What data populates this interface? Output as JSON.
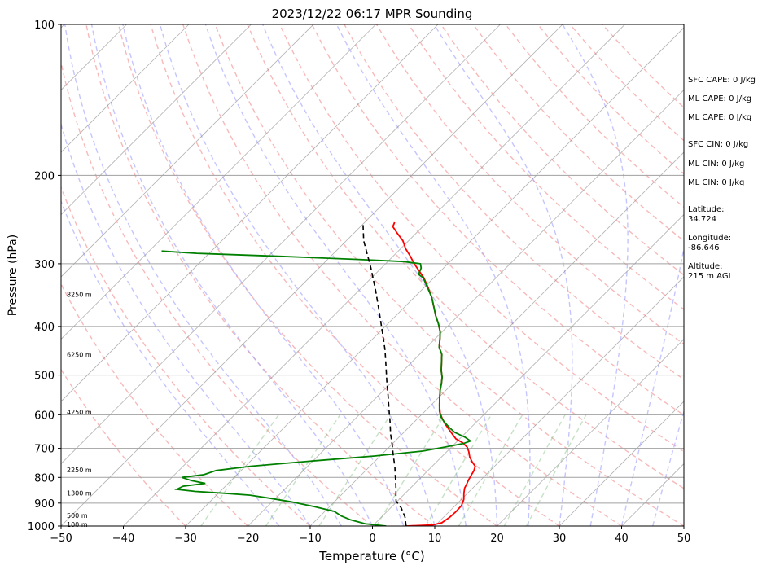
{
  "chart_data": {
    "type": "line",
    "title": "2023/12/22 06:17 MPR Sounding",
    "xlabel": "Temperature (°C)",
    "ylabel": "Pressure (hPa)",
    "xlim": [
      -50,
      50
    ],
    "ylim": [
      1000,
      100
    ],
    "y_scale": "log",
    "skew": "skew-T log-P",
    "x_ticks": [
      "−50",
      "−40",
      "−30",
      "−20",
      "−10",
      "0",
      "10",
      "20",
      "30",
      "40",
      "50"
    ],
    "y_ticks": [
      "100",
      "200",
      "300",
      "400",
      "500",
      "600",
      "700",
      "800",
      "900",
      "1000"
    ],
    "grid": true,
    "height_labels": [
      {
        "text": "8250 m",
        "p": 345
      },
      {
        "text": "6250 m",
        "p": 455
      },
      {
        "text": "4250 m",
        "p": 592
      },
      {
        "text": "2250 m",
        "p": 773
      },
      {
        "text": "1300 m",
        "p": 860
      },
      {
        "text": "500 m",
        "p": 952
      },
      {
        "text": "100 m",
        "p": 993
      }
    ],
    "series": [
      {
        "color": "#ff0000",
        "points": [
          [
            1000,
            5.4
          ],
          [
            995,
            9.4
          ],
          [
            985,
            10.6
          ],
          [
            960,
            11.0
          ],
          [
            935,
            11.1
          ],
          [
            910,
            11.0
          ],
          [
            885,
            10.4
          ],
          [
            860,
            9.4
          ],
          [
            840,
            8.7
          ],
          [
            825,
            8.4
          ],
          [
            808,
            8.0
          ],
          [
            792,
            7.7
          ],
          [
            776,
            7.4
          ],
          [
            760,
            6.9
          ],
          [
            745,
            5.7
          ],
          [
            728,
            4.5
          ],
          [
            712,
            3.6
          ],
          [
            697,
            2.6
          ],
          [
            683,
            1.2
          ],
          [
            670,
            -0.6
          ],
          [
            655,
            -2.0
          ],
          [
            640,
            -3.4
          ],
          [
            625,
            -4.8
          ],
          [
            610,
            -6.1
          ],
          [
            595,
            -7.3
          ],
          [
            575,
            -8.6
          ],
          [
            555,
            -9.8
          ],
          [
            535,
            -11.0
          ],
          [
            520,
            -11.8
          ],
          [
            505,
            -12.7
          ],
          [
            490,
            -13.9
          ],
          [
            470,
            -15.3
          ],
          [
            455,
            -16.4
          ],
          [
            440,
            -18.0
          ],
          [
            425,
            -19.1
          ],
          [
            410,
            -20.3
          ],
          [
            395,
            -21.9
          ],
          [
            380,
            -23.7
          ],
          [
            365,
            -25.4
          ],
          [
            350,
            -27.2
          ],
          [
            335,
            -29.3
          ],
          [
            320,
            -31.6
          ],
          [
            300,
            -35.4
          ],
          [
            290,
            -37.2
          ],
          [
            280,
            -39.2
          ],
          [
            270,
            -40.9
          ],
          [
            260,
            -43.2
          ],
          [
            253,
            -44.8
          ],
          [
            248,
            -45.2
          ]
        ]
      },
      {
        "color": "#008000",
        "points": [
          [
            1000,
            2.2
          ],
          [
            990,
            -1.5
          ],
          [
            972,
            -4.5
          ],
          [
            955,
            -6.6
          ],
          [
            935,
            -8.5
          ],
          [
            915,
            -12.4
          ],
          [
            895,
            -16.9
          ],
          [
            880,
            -21.0
          ],
          [
            868,
            -24.6
          ],
          [
            860,
            -29.2
          ],
          [
            853,
            -34.0
          ],
          [
            845,
            -37.3
          ],
          [
            833,
            -36.8
          ],
          [
            822,
            -33.7
          ],
          [
            812,
            -36.3
          ],
          [
            800,
            -38.4
          ],
          [
            790,
            -35.3
          ],
          [
            775,
            -34.0
          ],
          [
            760,
            -29.2
          ],
          [
            742,
            -20.2
          ],
          [
            725,
            -10.9
          ],
          [
            709,
            -4.0
          ],
          [
            696,
            -1.0
          ],
          [
            685,
            1.3
          ],
          [
            677,
            2.1
          ],
          [
            665,
            0.6
          ],
          [
            650,
            -1.9
          ],
          [
            636,
            -3.5
          ],
          [
            620,
            -5.2
          ],
          [
            605,
            -6.6
          ],
          [
            590,
            -7.7
          ],
          [
            575,
            -8.6
          ],
          [
            555,
            -9.8
          ],
          [
            535,
            -11.0
          ],
          [
            520,
            -11.8
          ],
          [
            505,
            -12.7
          ],
          [
            490,
            -13.9
          ],
          [
            470,
            -15.3
          ],
          [
            455,
            -16.4
          ],
          [
            440,
            -18.0
          ],
          [
            425,
            -19.1
          ],
          [
            410,
            -20.3
          ],
          [
            395,
            -21.9
          ],
          [
            380,
            -23.7
          ],
          [
            365,
            -25.4
          ],
          [
            350,
            -27.2
          ],
          [
            335,
            -29.4
          ],
          [
            320,
            -31.7
          ],
          [
            315,
            -33.0
          ],
          [
            306,
            -33.6
          ],
          [
            300,
            -34.4
          ],
          [
            297,
            -37.5
          ],
          [
            294,
            -45.4
          ],
          [
            290,
            -58.0
          ],
          [
            286,
            -72.0
          ],
          [
            283,
            -78.0
          ]
        ]
      },
      {
        "color": "#000000",
        "style": "dashed",
        "points": [
          [
            1000,
            5.4
          ],
          [
            960,
            3.8
          ],
          [
            920,
            1.7
          ],
          [
            892,
            -0.2
          ],
          [
            870,
            -1.1
          ],
          [
            850,
            -1.9
          ],
          [
            820,
            -3.2
          ],
          [
            790,
            -4.6
          ],
          [
            760,
            -6.0
          ],
          [
            725,
            -7.9
          ],
          [
            690,
            -9.8
          ],
          [
            655,
            -11.9
          ],
          [
            620,
            -13.9
          ],
          [
            585,
            -16.1
          ],
          [
            550,
            -18.4
          ],
          [
            515,
            -20.9
          ],
          [
            480,
            -23.5
          ],
          [
            445,
            -26.3
          ],
          [
            410,
            -29.6
          ],
          [
            375,
            -33.2
          ],
          [
            340,
            -37.2
          ],
          [
            305,
            -41.8
          ],
          [
            270,
            -47.2
          ],
          [
            250,
            -50.0
          ]
        ]
      }
    ],
    "dry_adiabats_theta_c": [
      -30,
      -20,
      -10,
      0,
      10,
      20,
      30,
      40,
      50,
      60,
      70,
      80,
      90,
      100,
      110,
      120,
      130,
      140,
      150,
      160,
      170
    ],
    "moist_adiabats_start_c": [
      -15,
      -10,
      -5,
      0,
      5,
      10,
      15,
      20,
      25,
      30,
      35,
      40,
      45
    ],
    "mixing_ratios_gkg": [
      0.4,
      1,
      2,
      4,
      7,
      10,
      16,
      20
    ],
    "colors": {
      "temperature": "#ff0000",
      "dewpoint": "#008000",
      "parcel": "#000000",
      "dry_adiabats": "#f08080",
      "moist_adiabats": "#9f9fff",
      "mixing_ratio": "#7fbf7f",
      "isotherms": "#808080"
    }
  },
  "side_info": {
    "sfc_cape": "SFC CAPE: 0 J/kg",
    "ml_cape_1": "ML CAPE: 0 J/kg",
    "ml_cape_2": "ML CAPE: 0 J/kg",
    "sfc_cin": "SFC CIN: 0 J/kg",
    "ml_cin_1": "ML CIN: 0 J/kg",
    "ml_cin_2": "ML CIN: 0 J/kg",
    "latitude_label": "Latitude:",
    "latitude": "34.724",
    "longitude_label": "Longitude:",
    "longitude": "-86.646",
    "altitude_label": "Altitude:",
    "altitude": "215 m AGL"
  }
}
